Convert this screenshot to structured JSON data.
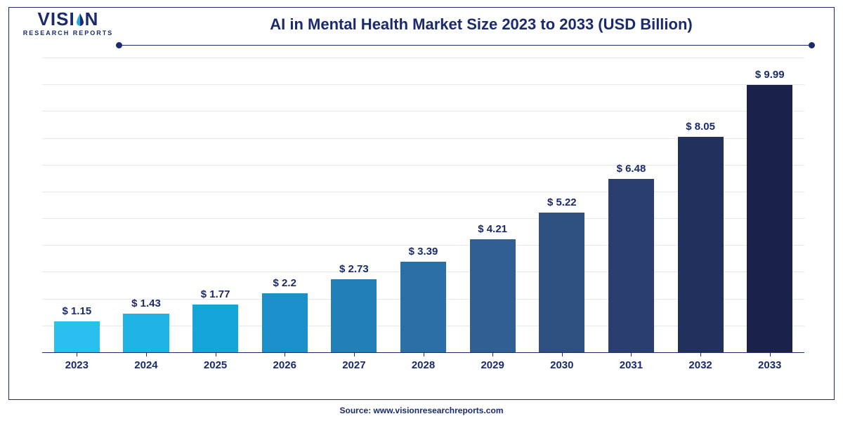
{
  "logo": {
    "word_left": "VISI",
    "word_right": "N",
    "subtitle": "RESEARCH REPORTS",
    "text_color": "#1a2a6c",
    "drop_colors": {
      "left": "#29abe2",
      "right": "#1a2a6c"
    }
  },
  "title": "AI in Mental Health Market Size 2023 to 2033 (USD Billion)",
  "source": "Source: www.visionresearchreports.com",
  "chart": {
    "type": "bar",
    "categories": [
      "2023",
      "2024",
      "2025",
      "2026",
      "2027",
      "2028",
      "2029",
      "2030",
      "2031",
      "2032",
      "2033"
    ],
    "values": [
      1.15,
      1.43,
      1.77,
      2.2,
      2.73,
      3.39,
      4.21,
      5.22,
      6.48,
      8.05,
      9.99
    ],
    "value_labels": [
      "$ 1.15",
      "$ 1.43",
      "$ 1.77",
      "$ 2.2",
      "$ 2.73",
      "$ 3.39",
      "$ 4.21",
      "$ 5.22",
      "$ 6.48",
      "$ 8.05",
      "$ 9.99"
    ],
    "bar_colors": [
      "#29c0ef",
      "#1fb3e6",
      "#17a4db",
      "#1b8fc9",
      "#227fb7",
      "#2a6fa5",
      "#2f5f93",
      "#2f4f81",
      "#2a3f6f",
      "#22305d",
      "#1a224b"
    ],
    "ylim": [
      0,
      11
    ],
    "gridlines": [
      0,
      1,
      2,
      3,
      4,
      5,
      6,
      7,
      8,
      9,
      10,
      11
    ],
    "grid_color": "#e6e8ee",
    "axis_color": "#1a2a6c",
    "background_color": "#ffffff",
    "bar_width_pct": 66,
    "label_fontsize": 15,
    "label_color": "#1a2a6c",
    "title_fontsize": 22,
    "title_color": "#1a2a6c"
  },
  "frame_color": "#1a2a6c"
}
